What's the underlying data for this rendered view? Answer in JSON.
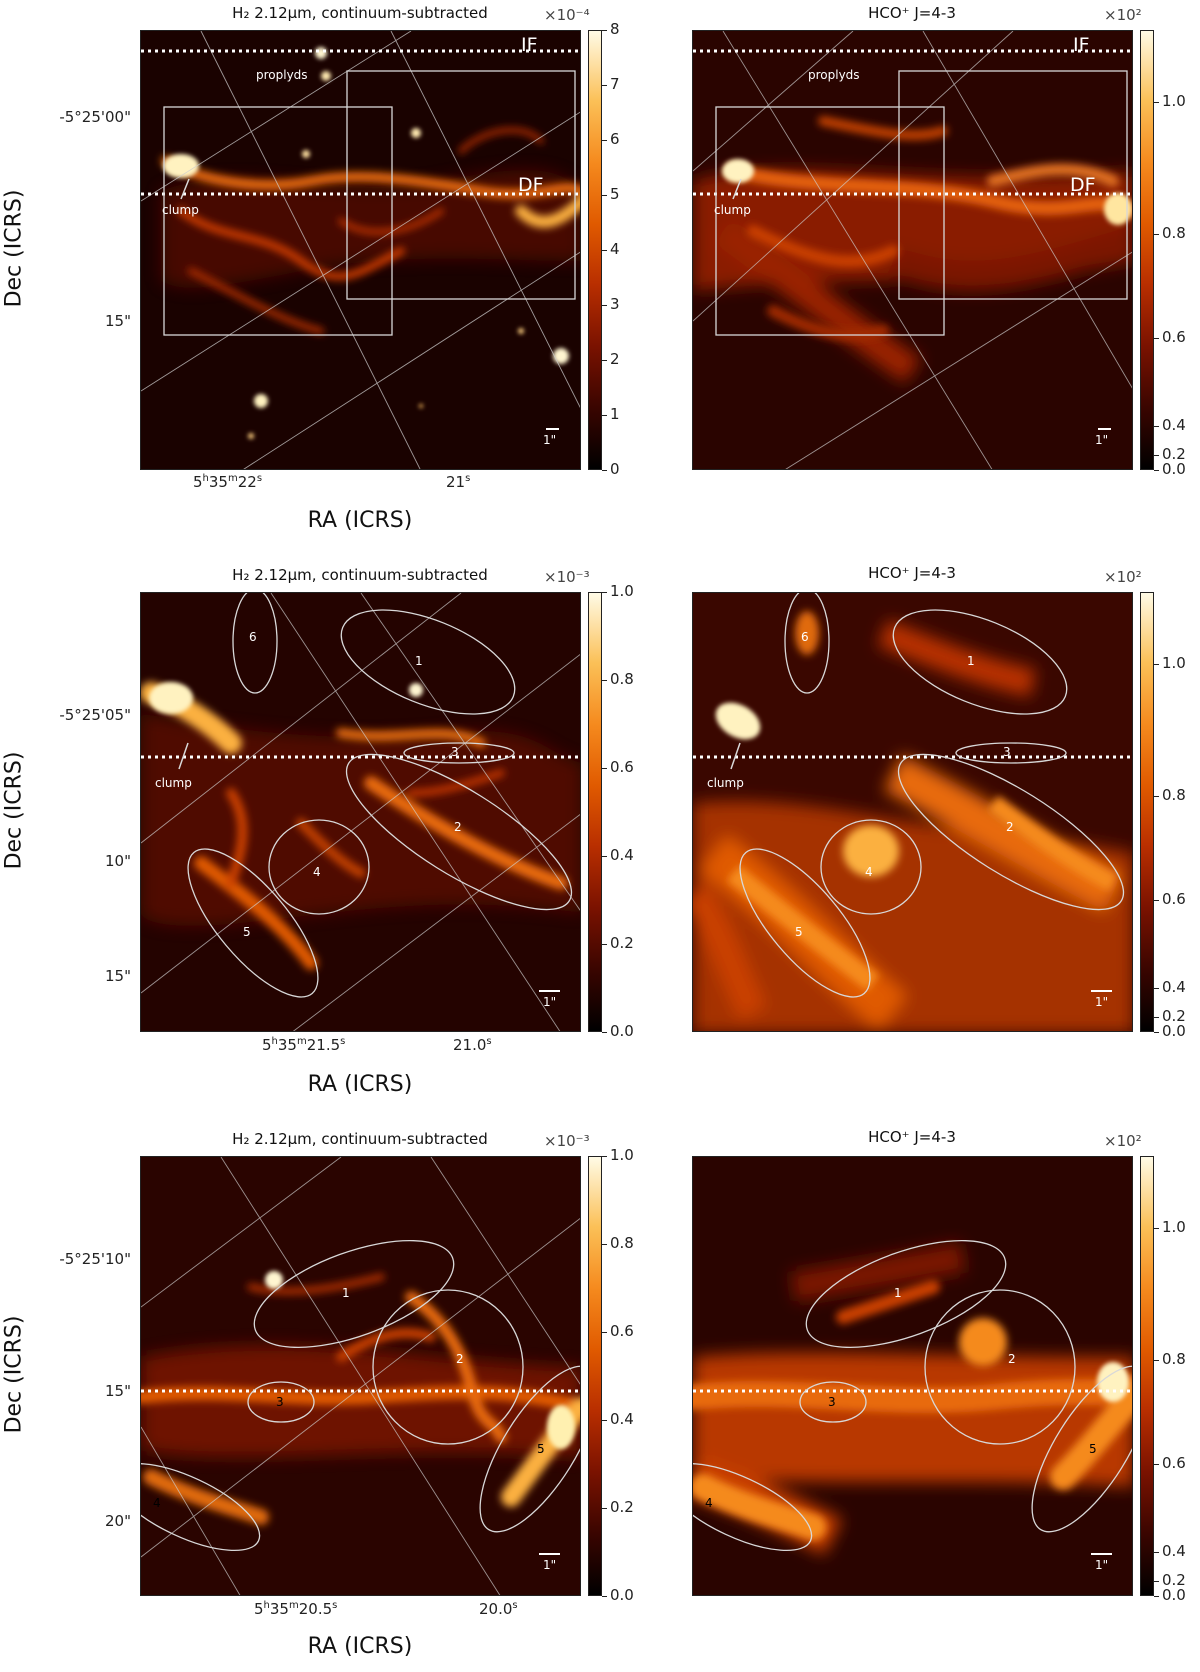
{
  "panels": [
    {
      "id": "row1-left",
      "title": "H₂ 2.12μm, continuum-subtracted",
      "colorbar_exponent": "×10⁻⁴",
      "colorbar_ticks": [
        "0",
        "1",
        "2",
        "3",
        "4",
        "5",
        "6",
        "7",
        "8"
      ],
      "labels": {
        "if": "IF",
        "df": "DF",
        "proplyds": "proplyds",
        "clump": "clump",
        "scale": "1\""
      },
      "yticks": [
        "-5°25'00\"",
        "15\""
      ],
      "xticks": [
        "5h35m22s",
        "21s"
      ],
      "ylabel": "Dec (ICRS)",
      "xlabel": "RA (ICRS)"
    },
    {
      "id": "row1-right",
      "title": "HCO⁺ J=4-3",
      "colorbar_exponent": "×10²",
      "colorbar_ticks": [
        "1.0",
        "0.8",
        "0.6",
        "0.4",
        "0.2",
        "0.0"
      ],
      "labels": {
        "if": "IF",
        "df": "DF",
        "proplyds": "proplyds",
        "clump": "clump",
        "scale": "1\""
      }
    },
    {
      "id": "row2-left",
      "title": "H₂ 2.12μm, continuum-subtracted",
      "colorbar_exponent": "×10⁻³",
      "colorbar_ticks": [
        "1.0",
        "0.8",
        "0.6",
        "0.4",
        "0.2",
        "0.0"
      ],
      "labels": {
        "clump": "clump",
        "scale": "1\"",
        "e1": "1",
        "e2": "2",
        "e3": "3",
        "e4": "4",
        "e5": "5",
        "e6": "6"
      },
      "yticks": [
        "-5°25'05\"",
        "10\"",
        "15\""
      ],
      "xticks": [
        "5h35m21.5s",
        "21.0s"
      ],
      "ylabel": "Dec (ICRS)",
      "xlabel": "RA (ICRS)"
    },
    {
      "id": "row2-right",
      "title": "HCO⁺ J=4-3",
      "colorbar_exponent": "×10²",
      "colorbar_ticks": [
        "1.0",
        "0.8",
        "0.6",
        "0.4",
        "0.2",
        "0.0"
      ],
      "labels": {
        "clump": "clump",
        "scale": "1\"",
        "e1": "1",
        "e2": "2",
        "e3": "3",
        "e4": "4",
        "e5": "5",
        "e6": "6"
      }
    },
    {
      "id": "row3-left",
      "title": "H₂ 2.12μm, continuum-subtracted",
      "colorbar_exponent": "×10⁻³",
      "colorbar_ticks": [
        "1.0",
        "0.8",
        "0.6",
        "0.4",
        "0.2",
        "0.0"
      ],
      "labels": {
        "scale": "1\"",
        "e1": "1",
        "e2": "2",
        "e3": "3",
        "e4": "4",
        "e5": "5"
      },
      "yticks": [
        "-5°25'10\"",
        "15\"",
        "20\""
      ],
      "xticks": [
        "5h35m20.5s",
        "20.0s"
      ],
      "ylabel": "Dec (ICRS)",
      "xlabel": "RA (ICRS)"
    },
    {
      "id": "row3-right",
      "title": "HCO⁺ J=4-3",
      "colorbar_exponent": "×10²",
      "colorbar_ticks": [
        "1.0",
        "0.8",
        "0.6",
        "0.4",
        "0.2",
        "0.0"
      ],
      "labels": {
        "scale": "1\"",
        "e1": "1",
        "e2": "2",
        "e3": "3",
        "e4": "4",
        "e5": "5"
      }
    }
  ],
  "colors": {
    "colormap_low": "#000000",
    "colormap_mid": "#e05a00",
    "colormap_high": "#fffbe6",
    "overlay": "#d8d8d8"
  }
}
